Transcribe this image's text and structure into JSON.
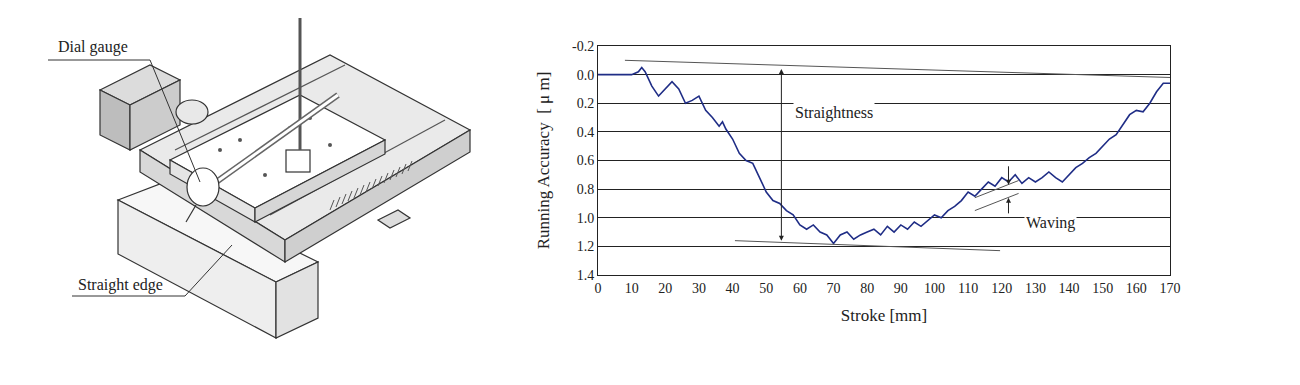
{
  "chart_data": {
    "type": "line",
    "xlabel": "Stroke [mm]",
    "ylabel": "Running Accuracy  [ μ m]",
    "xlim": [
      0,
      170
    ],
    "xticks": [
      0,
      10,
      20,
      30,
      40,
      50,
      60,
      70,
      80,
      90,
      100,
      110,
      120,
      130,
      140,
      150,
      160,
      170
    ],
    "ylim": [
      1.4,
      -0.2
    ],
    "yticks": [
      -0.2,
      {
        "value": 0,
        "label": "0.0"
      },
      0.2,
      0.4,
      0.6,
      0.8,
      {
        "value": 1,
        "label": "1.0"
      },
      1.2,
      1.4
    ],
    "grid": true,
    "series": [
      {
        "color": "#1f2d86",
        "x": [
          0,
          5,
          10,
          12,
          13,
          14,
          16,
          18,
          20,
          22,
          24,
          26,
          28,
          30,
          32,
          34,
          36,
          37,
          38,
          40,
          42,
          44,
          46,
          48,
          50,
          52,
          54,
          56,
          58,
          60,
          62,
          64,
          66,
          68,
          70,
          72,
          74,
          76,
          78,
          80,
          82,
          84,
          86,
          88,
          90,
          92,
          94,
          96,
          98,
          100,
          102,
          104,
          106,
          108,
          110,
          112,
          114,
          116,
          118,
          120,
          122,
          124,
          126,
          128,
          130,
          132,
          134,
          136,
          138,
          140,
          142,
          144,
          146,
          148,
          150,
          152,
          154,
          156,
          158,
          160,
          162,
          164,
          166,
          168,
          170
        ],
        "values": [
          0,
          0,
          0,
          -0.02,
          -0.05,
          -0.02,
          0.08,
          0.15,
          0.1,
          0.05,
          0.1,
          0.2,
          0.18,
          0.15,
          0.25,
          0.3,
          0.36,
          0.33,
          0.38,
          0.45,
          0.55,
          0.6,
          0.62,
          0.72,
          0.82,
          0.88,
          0.9,
          0.95,
          0.98,
          1.05,
          1.08,
          1.05,
          1.1,
          1.12,
          1.18,
          1.12,
          1.1,
          1.15,
          1.12,
          1.1,
          1.08,
          1.12,
          1.06,
          1.1,
          1.05,
          1.08,
          1.03,
          1.06,
          1.02,
          0.98,
          1.0,
          0.95,
          0.92,
          0.88,
          0.82,
          0.85,
          0.8,
          0.75,
          0.78,
          0.72,
          0.75,
          0.7,
          0.76,
          0.72,
          0.75,
          0.72,
          0.68,
          0.72,
          0.75,
          0.7,
          0.65,
          0.62,
          0.58,
          0.55,
          0.5,
          0.45,
          0.42,
          0.35,
          0.28,
          0.25,
          0.26,
          0.2,
          0.12,
          0.06,
          0.06
        ]
      },
      {
        "color": "#555555",
        "x": [
          8,
          170
        ],
        "values": [
          -0.1,
          0.02
        ]
      },
      {
        "color": "#555555",
        "x": [
          40.7,
          119.5
        ],
        "values": [
          1.16,
          1.23
        ]
      },
      {
        "color": "#555555",
        "x": [
          112,
          125
        ],
        "values": [
          0.86,
          0.74
        ]
      },
      {
        "color": "#555555",
        "x": [
          112,
          125
        ],
        "values": [
          0.95,
          0.83
        ]
      }
    ],
    "annotations": [
      {
        "text": "Straightness",
        "x": 70,
        "y": 0.27
      },
      {
        "text": "Waving",
        "x": 134.5,
        "y": 1.04
      }
    ],
    "arrows": [
      {
        "x0": 54.5,
        "y0": -0.05,
        "x1": 54.5,
        "y1": 1.16,
        "both": true
      },
      {
        "x0": 122,
        "y0": 0.63,
        "x1": 122,
        "y1": 0.77
      },
      {
        "x0": 122,
        "y0": 0.98,
        "x1": 122,
        "y1": 0.86
      }
    ]
  },
  "diagram": {
    "labels": [
      "Dial gauge",
      "Straight edge"
    ]
  }
}
